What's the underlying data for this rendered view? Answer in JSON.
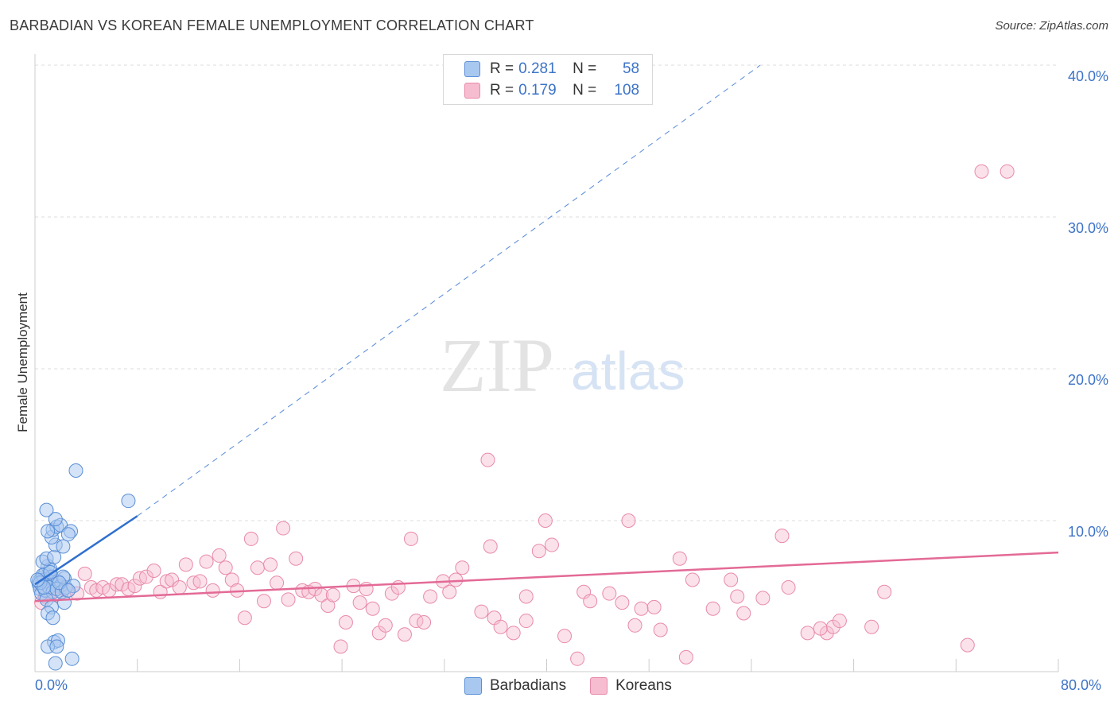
{
  "title": "BARBADIAN VS KOREAN FEMALE UNEMPLOYMENT CORRELATION CHART",
  "source": "Source: ZipAtlas.com",
  "watermark": {
    "zip": "ZIP",
    "atlas": "atlas"
  },
  "colors": {
    "barbadian_fill": "#a9c8f0",
    "barbadian_stroke": "#5a8fd6",
    "barbadian_line": "#2f6fcf",
    "korean_fill": "#f6bcd0",
    "korean_stroke": "#e88aaa",
    "korean_line": "#e36a96",
    "grid": "#dddddd",
    "tick_text": "#3d73c7"
  },
  "legend": {
    "rows": [
      {
        "r_label": "R =",
        "r_value": "0.281",
        "n_label": "N =",
        "n_value": "58"
      },
      {
        "r_label": "R =",
        "r_value": "0.179",
        "n_label": "N =",
        "n_value": "108"
      }
    ]
  },
  "bottom_legend": [
    "Barbadians",
    "Koreans"
  ],
  "axes": {
    "ylabel": "Female Unemployment",
    "yticks": [
      "40.0%",
      "30.0%",
      "20.0%",
      "10.0%"
    ],
    "xticks": [
      "0.0%",
      "80.0%"
    ]
  },
  "chart_data": {
    "type": "scatter",
    "title": "BARBADIAN VS KOREAN FEMALE UNEMPLOYMENT CORRELATION CHART",
    "xlabel": "",
    "ylabel": "Female Unemployment",
    "xlim": [
      0,
      80
    ],
    "ylim": [
      0,
      42
    ],
    "yticks": [
      10,
      20,
      30,
      40
    ],
    "series": [
      {
        "name": "Barbadians",
        "R": 0.281,
        "N": 58,
        "trend": {
          "x0": 0,
          "y0": 5.8,
          "x1": 8,
          "y1": 10.3,
          "dashed_to_x": 56.7,
          "dashed_to_y": 40.0
        },
        "points": [
          [
            0.3,
            5.8
          ],
          [
            0.5,
            6.2
          ],
          [
            0.8,
            6.5
          ],
          [
            1.0,
            7.0
          ],
          [
            1.2,
            6.8
          ],
          [
            0.6,
            7.3
          ],
          [
            0.9,
            7.5
          ],
          [
            1.5,
            7.6
          ],
          [
            1.6,
            8.4
          ],
          [
            2.2,
            8.3
          ],
          [
            1.3,
            8.9
          ],
          [
            1.4,
            9.4
          ],
          [
            1.7,
            9.6
          ],
          [
            2.0,
            9.7
          ],
          [
            2.8,
            9.3
          ],
          [
            2.6,
            9.1
          ],
          [
            1.0,
            9.3
          ],
          [
            1.6,
            10.1
          ],
          [
            0.9,
            10.7
          ],
          [
            3.2,
            13.3
          ],
          [
            7.3,
            11.3
          ],
          [
            0.4,
            5.5
          ],
          [
            0.6,
            5.9
          ],
          [
            0.7,
            6.1
          ],
          [
            1.1,
            6.0
          ],
          [
            1.3,
            6.3
          ],
          [
            1.5,
            5.8
          ],
          [
            1.8,
            6.0
          ],
          [
            2.0,
            5.7
          ],
          [
            2.3,
            6.2
          ],
          [
            0.5,
            5.2
          ],
          [
            0.8,
            5.4
          ],
          [
            1.1,
            5.6
          ],
          [
            1.4,
            5.3
          ],
          [
            1.7,
            5.5
          ],
          [
            2.1,
            5.3
          ],
          [
            2.4,
            5.6
          ],
          [
            3.0,
            5.7
          ],
          [
            0.3,
            6.0
          ],
          [
            0.6,
            6.4
          ],
          [
            1.2,
            6.6
          ],
          [
            2.2,
            6.3
          ],
          [
            0.9,
            4.8
          ],
          [
            1.3,
            4.3
          ],
          [
            2.3,
            4.6
          ],
          [
            1.0,
            3.9
          ],
          [
            1.4,
            3.6
          ],
          [
            1.5,
            2.0
          ],
          [
            1.8,
            2.1
          ],
          [
            1.0,
            1.7
          ],
          [
            1.7,
            1.7
          ],
          [
            2.9,
            0.9
          ],
          [
            1.6,
            0.6
          ],
          [
            0.4,
            5.9
          ],
          [
            0.7,
            5.6
          ],
          [
            1.9,
            5.9
          ],
          [
            2.6,
            5.4
          ],
          [
            0.2,
            6.1
          ]
        ]
      },
      {
        "name": "Koreans",
        "R": 0.179,
        "N": 108,
        "trend": {
          "x0": 0,
          "y0": 4.7,
          "x1": 80,
          "y1": 7.9
        },
        "points": [
          [
            0.5,
            4.6
          ],
          [
            0.8,
            5.0
          ],
          [
            1.2,
            5.3
          ],
          [
            1.6,
            5.1
          ],
          [
            2.0,
            5.6
          ],
          [
            2.5,
            5.4
          ],
          [
            3.3,
            5.2
          ],
          [
            3.9,
            6.5
          ],
          [
            4.4,
            5.6
          ],
          [
            4.8,
            5.4
          ],
          [
            5.3,
            5.6
          ],
          [
            5.8,
            5.4
          ],
          [
            6.4,
            5.8
          ],
          [
            6.8,
            5.8
          ],
          [
            7.3,
            5.5
          ],
          [
            7.8,
            5.7
          ],
          [
            8.2,
            6.2
          ],
          [
            8.7,
            6.3
          ],
          [
            9.3,
            6.7
          ],
          [
            9.8,
            5.3
          ],
          [
            10.3,
            6.0
          ],
          [
            10.7,
            6.1
          ],
          [
            11.3,
            5.6
          ],
          [
            11.8,
            7.1
          ],
          [
            12.4,
            5.9
          ],
          [
            12.9,
            6.0
          ],
          [
            13.4,
            7.3
          ],
          [
            13.9,
            5.4
          ],
          [
            14.4,
            7.7
          ],
          [
            14.9,
            6.9
          ],
          [
            15.4,
            6.1
          ],
          [
            15.8,
            5.4
          ],
          [
            16.4,
            3.6
          ],
          [
            16.9,
            8.8
          ],
          [
            17.4,
            6.9
          ],
          [
            17.9,
            4.7
          ],
          [
            18.4,
            7.1
          ],
          [
            18.9,
            5.9
          ],
          [
            19.4,
            9.5
          ],
          [
            19.8,
            4.8
          ],
          [
            20.4,
            7.5
          ],
          [
            20.9,
            5.4
          ],
          [
            21.4,
            5.3
          ],
          [
            21.9,
            5.5
          ],
          [
            22.4,
            5.1
          ],
          [
            22.9,
            4.4
          ],
          [
            23.3,
            5.1
          ],
          [
            23.9,
            1.7
          ],
          [
            24.3,
            3.3
          ],
          [
            24.9,
            5.7
          ],
          [
            25.4,
            4.6
          ],
          [
            25.9,
            5.5
          ],
          [
            26.4,
            4.2
          ],
          [
            26.9,
            2.6
          ],
          [
            27.4,
            3.1
          ],
          [
            27.9,
            5.2
          ],
          [
            28.4,
            5.6
          ],
          [
            28.9,
            2.5
          ],
          [
            29.4,
            8.8
          ],
          [
            29.8,
            3.4
          ],
          [
            30.4,
            3.3
          ],
          [
            30.9,
            5.0
          ],
          [
            31.9,
            6.0
          ],
          [
            32.4,
            5.3
          ],
          [
            32.9,
            6.1
          ],
          [
            33.4,
            6.9
          ],
          [
            34.9,
            4.0
          ],
          [
            35.4,
            14.0
          ],
          [
            35.6,
            8.3
          ],
          [
            35.9,
            3.6
          ],
          [
            36.4,
            3.0
          ],
          [
            37.4,
            2.6
          ],
          [
            38.4,
            3.4
          ],
          [
            38.4,
            5.0
          ],
          [
            39.4,
            8.0
          ],
          [
            39.9,
            10.0
          ],
          [
            40.4,
            8.4
          ],
          [
            41.4,
            2.4
          ],
          [
            42.4,
            0.9
          ],
          [
            42.9,
            5.3
          ],
          [
            43.4,
            4.7
          ],
          [
            44.9,
            5.2
          ],
          [
            45.9,
            4.6
          ],
          [
            46.4,
            10.0
          ],
          [
            46.9,
            3.1
          ],
          [
            47.4,
            4.2
          ],
          [
            48.9,
            2.8
          ],
          [
            48.4,
            4.3
          ],
          [
            50.4,
            7.5
          ],
          [
            50.9,
            1.0
          ],
          [
            51.4,
            6.1
          ],
          [
            53.0,
            4.2
          ],
          [
            54.4,
            6.1
          ],
          [
            54.9,
            5.0
          ],
          [
            55.4,
            3.9
          ],
          [
            56.9,
            4.9
          ],
          [
            58.4,
            9.0
          ],
          [
            58.9,
            5.6
          ],
          [
            60.4,
            2.6
          ],
          [
            61.9,
            2.6
          ],
          [
            62.4,
            3.0
          ],
          [
            62.9,
            3.4
          ],
          [
            66.4,
            5.3
          ],
          [
            65.4,
            3.0
          ],
          [
            72.9,
            1.8
          ],
          [
            74.0,
            33.0
          ],
          [
            76.0,
            33.0
          ],
          [
            61.4,
            2.9
          ]
        ]
      }
    ]
  }
}
